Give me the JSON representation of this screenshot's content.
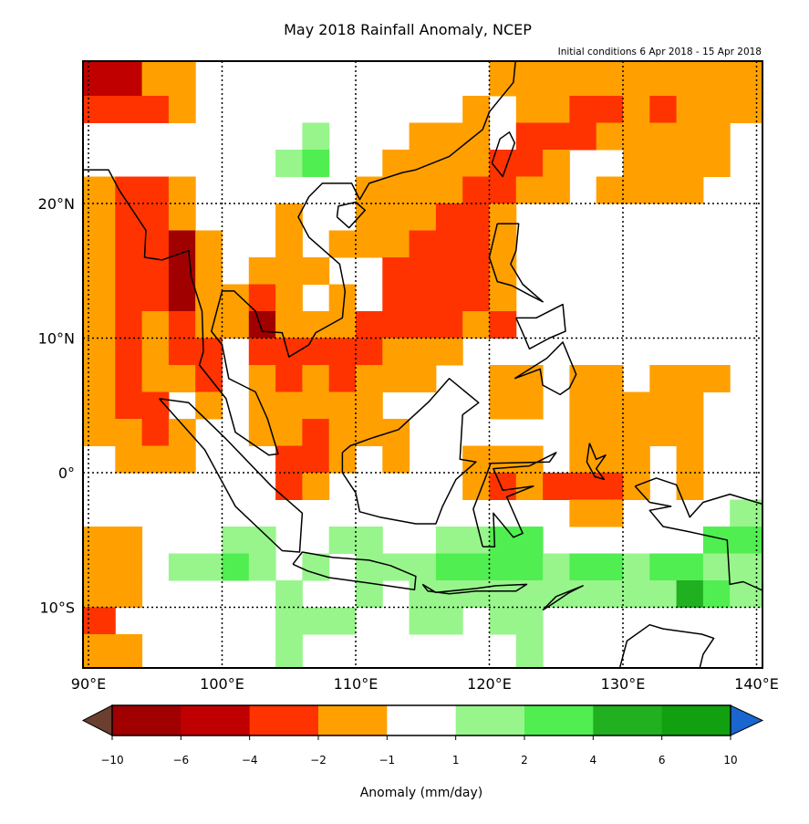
{
  "title": "May 2018 Rainfall Anomaly, NCEP",
  "subtitle": "Initial conditions 6 Apr 2018 - 15 Apr 2018",
  "axes": {
    "lon_labels": [
      {
        "lon": 90,
        "label": "90°E"
      },
      {
        "lon": 100,
        "label": "100°E"
      },
      {
        "lon": 110,
        "label": "110°E"
      },
      {
        "lon": 120,
        "label": "120°E"
      },
      {
        "lon": 130,
        "label": "130°E"
      },
      {
        "lon": 140,
        "label": "140°E"
      }
    ],
    "lat_labels": [
      {
        "lat": 20,
        "label": "20°N"
      },
      {
        "lat": 10,
        "label": "10°N"
      },
      {
        "lat": 0,
        "label": "0°"
      },
      {
        "lat": -10,
        "label": "10°S"
      }
    ]
  },
  "colorbar": {
    "label": "Anomaly (mm/day)",
    "ticks": [
      "−10",
      "−6",
      "−4",
      "−2",
      "−1",
      "1",
      "2",
      "4",
      "6",
      "10"
    ],
    "under_color": "#6b3f30",
    "over_color": "#1a66d0",
    "bins": [
      {
        "code": "D",
        "range": "-10 to -6",
        "color": "#a00000"
      },
      {
        "code": "d",
        "range": "-6 to -4",
        "color": "#c00000"
      },
      {
        "code": "r",
        "range": "-4 to -2",
        "color": "#ff3300"
      },
      {
        "code": "o",
        "range": "-2 to -1",
        "color": "#ffa000"
      },
      {
        "code": ".",
        "range": "-1 to 1",
        "color": "#ffffff"
      },
      {
        "code": "g",
        "range": "1 to 2",
        "color": "#98f58c"
      },
      {
        "code": "G",
        "range": "2 to 4",
        "color": "#50ee50"
      },
      {
        "code": "h",
        "range": "4 to 6",
        "color": "#20b020"
      },
      {
        "code": "H",
        "range": "6 to 10",
        "color": "#10a010"
      }
    ]
  },
  "chart_data": {
    "type": "heatmap",
    "lon_range": [
      89.6,
      140.4
    ],
    "lat_range": [
      -14.8,
      30.6
    ],
    "cell_size_deg": 2,
    "grid_origin": {
      "lon": 90,
      "lat_top": 30
    },
    "grid_rows": [
      "ddoo...........oooooooooo",
      "rrro..........o.oorrorooo",
      "........g...ooo.rrrooooo.",
      ".......gG..oooorro..oooo.",
      "orro......oooorroo.oooo..",
      "orro...o..ooorro.........",
      "orrDo..o.ooorrro.........",
      "orrDo.ooo..rrrro.........",
      "orrDooro.o.rrrro.........",
      "ororooDooorrrror.........",
      "ororr.rrrrrooo...........",
      "oroor.ororooo..oo.oo.ooo.",
      "orr.o.ooooo....oo.ooooo..",
      "ooro..oorooo......ooooo..",
      ".ooo...rro.o..ooo.ooo.o..",
      ".......ro.....ororrro.o..",
      "..................oo....g",
      "oo...gg..gg..ggGG......GG",
      "oo.ggGg.g.gggGGGGgGGgGGgg",
      "oo.....g..g.gggggggggghGg",
      "r......ggg..gg.gg........",
      "oo.....g........g........",
      "oo.....g........g........"
    ]
  }
}
